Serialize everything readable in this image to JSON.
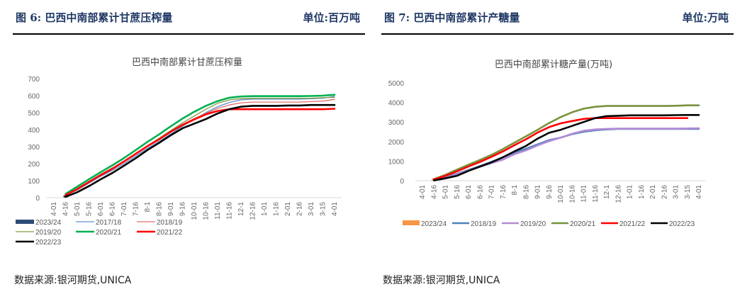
{
  "panels": [
    {
      "figure_title": "图 6:  巴西中南部累计甘蔗压榨量",
      "unit": "单位:百万吨",
      "source": "数据来源:银河期货,UNICA"
    },
    {
      "figure_title": "图 7:  巴西中南部累计产糖量",
      "unit": "单位:万吨",
      "source": "数据来源:银河期货,UNICA"
    }
  ],
  "chart_data": [
    {
      "type": "line",
      "title": "巴西中南部累计甘蔗压榨量",
      "xlabel": "",
      "ylabel": "",
      "ylim": [
        0,
        700
      ],
      "yticks": [
        0,
        100,
        200,
        300,
        400,
        500,
        600,
        700
      ],
      "grid": false,
      "legend_placement": "bottom-left",
      "categories": [
        "4-01",
        "4-16",
        "5-01",
        "5-16",
        "6-01",
        "6-16",
        "7-01",
        "7-16",
        "8-1",
        "8-16",
        "9-01",
        "9-16",
        "10-01",
        "10-16",
        "11-01",
        "11-16",
        "12-1",
        "12-16",
        "1-01",
        "1-16",
        "2-01",
        "2-16",
        "3-01",
        "3-15",
        "4-01"
      ],
      "series": [
        {
          "name": "2023/24",
          "color": "#2e4a78",
          "style": "bar",
          "values": [
            null,
            5,
            null,
            null,
            null,
            null,
            null,
            null,
            null,
            null,
            null,
            null,
            null,
            null,
            null,
            null,
            null,
            null,
            null,
            null,
            null,
            null,
            null,
            null,
            null
          ]
        },
        {
          "name": "2017/18",
          "color": "#5b8fd1",
          "style": "line-thin",
          "values": [
            null,
            12,
            45,
            85,
            125,
            160,
            200,
            245,
            290,
            330,
            375,
            420,
            460,
            500,
            535,
            560,
            575,
            580,
            580,
            580,
            580,
            580,
            582,
            585,
            595
          ]
        },
        {
          "name": "2018/19",
          "color": "#e46c6c",
          "style": "line-thin",
          "values": [
            null,
            15,
            50,
            90,
            130,
            168,
            210,
            255,
            300,
            340,
            385,
            430,
            465,
            495,
            525,
            545,
            558,
            562,
            562,
            562,
            562,
            562,
            565,
            568,
            578
          ]
        },
        {
          "name": "2019/20",
          "color": "#7f9a3c",
          "style": "line-thin",
          "values": [
            null,
            18,
            55,
            95,
            137,
            175,
            215,
            260,
            305,
            350,
            395,
            440,
            480,
            520,
            555,
            575,
            582,
            584,
            584,
            584,
            584,
            584,
            585,
            588,
            590
          ]
        },
        {
          "name": "2020/21",
          "color": "#00b050",
          "style": "line-thick",
          "values": [
            null,
            22,
            65,
            108,
            150,
            190,
            233,
            280,
            328,
            372,
            420,
            465,
            505,
            540,
            568,
            588,
            595,
            597,
            597,
            597,
            597,
            597,
            598,
            600,
            605
          ]
        },
        {
          "name": "2021/22",
          "color": "#ff0000",
          "style": "line-thick",
          "values": [
            null,
            15,
            50,
            92,
            133,
            170,
            213,
            258,
            303,
            343,
            388,
            428,
            460,
            490,
            510,
            520,
            520,
            520,
            520,
            520,
            520,
            520,
            520,
            520,
            523
          ]
        },
        {
          "name": "2022/23",
          "color": "#000000",
          "style": "line-thick",
          "values": [
            null,
            5,
            32,
            68,
            108,
            145,
            188,
            232,
            280,
            322,
            367,
            408,
            435,
            462,
            495,
            520,
            535,
            540,
            540,
            540,
            542,
            542,
            545,
            545,
            545
          ]
        }
      ]
    },
    {
      "type": "line",
      "title": "巴西中南部累计糖产量(万吨)",
      "xlabel": "",
      "ylabel": "",
      "ylim": [
        0,
        5000
      ],
      "yticks": [
        0,
        1000,
        2000,
        3000,
        4000,
        5000
      ],
      "grid": false,
      "legend_placement": "bottom",
      "categories": [
        "4-01",
        "4-16",
        "5-01",
        "5-16",
        "6-01",
        "6-16",
        "7-01",
        "7-16",
        "8-1",
        "8-16",
        "9-01",
        "9-16",
        "10-01",
        "10-16",
        "11-01",
        "11-16",
        "12-1",
        "12-16",
        "1-01",
        "1-16",
        "2-01",
        "2-16",
        "3-01",
        "3-15",
        "4-01"
      ],
      "series": [
        {
          "name": "2023/24",
          "color": "#f79646",
          "style": "bar",
          "values": [
            null,
            40,
            null,
            null,
            null,
            null,
            null,
            null,
            null,
            null,
            null,
            null,
            null,
            null,
            null,
            null,
            null,
            null,
            null,
            null,
            null,
            null,
            null,
            null,
            null
          ]
        },
        {
          "name": "2018/19",
          "color": "#4f81bd",
          "style": "line-thick",
          "values": [
            null,
            40,
            180,
            350,
            550,
            750,
            960,
            1200,
            1450,
            1630,
            1850,
            2070,
            2200,
            2380,
            2500,
            2580,
            2620,
            2650,
            2650,
            2650,
            2650,
            2650,
            2650,
            2650,
            2650
          ]
        },
        {
          "name": "2019/20",
          "color": "#b38bd6",
          "style": "line-thick",
          "values": [
            null,
            30,
            150,
            320,
            520,
            720,
            900,
            1080,
            1350,
            1550,
            1800,
            2020,
            2200,
            2400,
            2550,
            2620,
            2650,
            2660,
            2660,
            2660,
            2660,
            2660,
            2660,
            2670,
            2680
          ]
        },
        {
          "name": "2020/21",
          "color": "#77933c",
          "style": "line-thick",
          "values": [
            null,
            80,
            300,
            560,
            820,
            1060,
            1320,
            1620,
            1950,
            2270,
            2600,
            2950,
            3250,
            3500,
            3680,
            3780,
            3820,
            3820,
            3820,
            3820,
            3820,
            3820,
            3830,
            3850,
            3850
          ]
        },
        {
          "name": "2021/22",
          "color": "#ff0000",
          "style": "line-thick",
          "values": [
            null,
            60,
            250,
            480,
            730,
            960,
            1220,
            1500,
            1820,
            2120,
            2460,
            2740,
            2930,
            3050,
            3160,
            3200,
            3200,
            3200,
            3200,
            3200,
            3200,
            3200,
            3200,
            3200,
            null
          ]
        },
        {
          "name": "2022/23",
          "color": "#000000",
          "style": "line-thick",
          "values": [
            null,
            10,
            120,
            250,
            500,
            720,
            940,
            1200,
            1500,
            1780,
            2150,
            2450,
            2600,
            2800,
            3000,
            3200,
            3300,
            3320,
            3340,
            3340,
            3340,
            3340,
            3350,
            3360,
            3360
          ]
        }
      ]
    }
  ]
}
